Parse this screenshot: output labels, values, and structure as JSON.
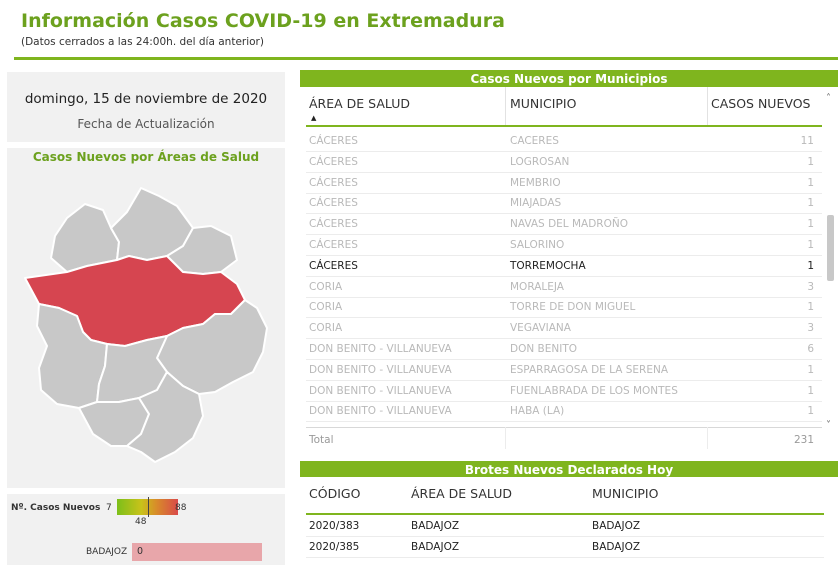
{
  "header": {
    "title": "Información Casos COVID-19 en Extremadura",
    "subtitle": "(Datos cerrados a las 24:00h. del día anterior)"
  },
  "update": {
    "date": "domingo, 15 de noviembre de 2020",
    "label": "Fecha de Actualización"
  },
  "map": {
    "title": "Casos Nuevos por Áreas de Salud",
    "highlight_color": "#d64550",
    "base_color": "#c8c8c8"
  },
  "legend": {
    "title": "Nº. Casos Nuevos",
    "min": "7",
    "mid": "48",
    "max": "88",
    "province": "BADAJOZ",
    "province_value": "0"
  },
  "municipios": {
    "title": "Casos Nuevos por Municipios",
    "columns": [
      "ÁREA DE SALUD",
      "MUNICIPIO",
      "CASOS NUEVOS"
    ],
    "rows": [
      {
        "area": "CÁCERES",
        "municipio": "CACERES",
        "casos": "11",
        "state": "faded"
      },
      {
        "area": "CÁCERES",
        "municipio": "LOGROSAN",
        "casos": "1",
        "state": "faded"
      },
      {
        "area": "CÁCERES",
        "municipio": "MEMBRIO",
        "casos": "1",
        "state": "faded"
      },
      {
        "area": "CÁCERES",
        "municipio": "MIAJADAS",
        "casos": "1",
        "state": "faded"
      },
      {
        "area": "CÁCERES",
        "municipio": "NAVAS DEL MADROÑO",
        "casos": "1",
        "state": "faded"
      },
      {
        "area": "CÁCERES",
        "municipio": "SALORINO",
        "casos": "1",
        "state": "faded"
      },
      {
        "area": "CÁCERES",
        "municipio": "TORREMOCHA",
        "casos": "1",
        "state": "active"
      },
      {
        "area": "CORIA",
        "municipio": "MORALEJA",
        "casos": "3",
        "state": "faded"
      },
      {
        "area": "CORIA",
        "municipio": "TORRE DE DON MIGUEL",
        "casos": "1",
        "state": "faded"
      },
      {
        "area": "CORIA",
        "municipio": "VEGAVIANA",
        "casos": "3",
        "state": "faded"
      },
      {
        "area": "DON BENITO - VILLANUEVA",
        "municipio": "DON BENITO",
        "casos": "6",
        "state": "faded"
      },
      {
        "area": "DON BENITO - VILLANUEVA",
        "municipio": "ESPARRAGOSA DE LA SERENA",
        "casos": "1",
        "state": "faded"
      },
      {
        "area": "DON BENITO - VILLANUEVA",
        "municipio": "FUENLABRADA DE LOS MONTES",
        "casos": "1",
        "state": "faded"
      },
      {
        "area": "DON BENITO - VILLANUEVA",
        "municipio": "HABA (LA)",
        "casos": "1",
        "state": "faded"
      }
    ],
    "total_label": "Total",
    "total_value": "231"
  },
  "brotes": {
    "title": "Brotes Nuevos Declarados Hoy",
    "columns": [
      "CÓDIGO",
      "ÁREA DE SALUD",
      "MUNICIPIO"
    ],
    "rows": [
      {
        "codigo": "2020/383",
        "area": "BADAJOZ",
        "municipio": "BADAJOZ"
      },
      {
        "codigo": "2020/385",
        "area": "BADAJOZ",
        "municipio": "BADAJOZ"
      }
    ]
  }
}
